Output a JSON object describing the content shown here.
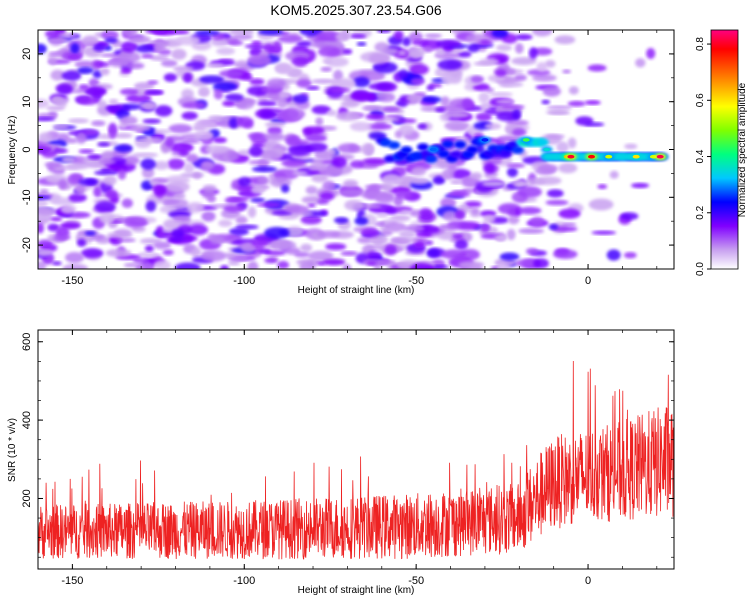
{
  "title": "KOM5.2025.307.23.54.G06",
  "chart_data": [
    {
      "type": "heatmap",
      "name": "spectrogram",
      "xlabel": "Height of straight line (km)",
      "ylabel": "Frequency (Hz)",
      "xlim": [
        -160,
        25
      ],
      "ylim": [
        -25,
        25
      ],
      "xticks": [
        -150,
        -100,
        -50,
        0
      ],
      "yticks": [
        -20,
        -10,
        0,
        10,
        20
      ],
      "xtick_labels": [
        "-150",
        "-100",
        "-50",
        "0"
      ],
      "ytick_labels": [
        "-20",
        "-10",
        "0",
        "10",
        "20"
      ],
      "colorbar": {
        "label": "Normalized spectral amplitude",
        "range": [
          0.0,
          0.85
        ],
        "ticks": [
          0.0,
          0.2,
          0.4,
          0.6,
          0.8
        ],
        "tick_labels": [
          "0.0",
          "0.2",
          "0.4",
          "0.6",
          "0.8"
        ],
        "colors": [
          "#ffffff",
          "#c8a0f0",
          "#8000ff",
          "#0000ff",
          "#00c8ff",
          "#00ff80",
          "#80ff00",
          "#ffff00",
          "#ff8000",
          "#ff0000",
          "#ff0080"
        ]
      },
      "signal_track": {
        "description": "satellite trace",
        "points": [
          {
            "x": -45,
            "y": 0,
            "amp": 0.28
          },
          {
            "x": -30,
            "y": 2,
            "amp": 0.25
          },
          {
            "x": -18,
            "y": 2,
            "amp": 0.45
          },
          {
            "x": -12,
            "y": 0,
            "amp": 0.35
          },
          {
            "x": -6,
            "y": -1.5,
            "amp": 0.65
          },
          {
            "x": -5,
            "y": -1.5,
            "amp": 0.8
          },
          {
            "x": 1,
            "y": -1.5,
            "amp": 0.78
          },
          {
            "x": 6,
            "y": -1.5,
            "amp": 0.55
          },
          {
            "x": 14,
            "y": -1.5,
            "amp": 0.6
          },
          {
            "x": 19,
            "y": -1.5,
            "amp": 0.55
          },
          {
            "x": 21,
            "y": -1.5,
            "amp": 0.82
          }
        ]
      }
    },
    {
      "type": "line",
      "name": "snr",
      "xlabel": "Height of straight line (km)",
      "ylabel": "SNR (10 * v/v)",
      "xlim": [
        -160,
        25
      ],
      "ylim": [
        20,
        630
      ],
      "xticks": [
        -150,
        -100,
        -50,
        0
      ],
      "yticks": [
        200,
        400,
        600
      ],
      "xtick_labels": [
        "-150",
        "-100",
        "-50",
        "0"
      ],
      "ytick_labels": [
        "200",
        "400",
        "600"
      ],
      "color": "#ee2222",
      "series": [
        {
          "name": "SNR",
          "envelope_x": [
            -160,
            -100,
            -50,
            -20,
            -15,
            -10,
            0,
            10,
            25
          ],
          "envelope_mean": [
            115,
            120,
            130,
            150,
            200,
            240,
            260,
            270,
            300
          ],
          "envelope_spread": [
            70,
            75,
            85,
            90,
            110,
            120,
            120,
            130,
            150
          ]
        }
      ]
    }
  ]
}
